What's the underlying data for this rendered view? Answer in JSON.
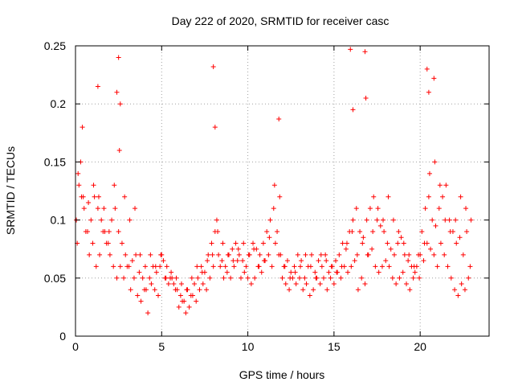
{
  "chart_data": {
    "type": "scatter",
    "title": "Day 222 of 2020, SRMTID for receiver casc",
    "xlabel": "GPS time / hours",
    "ylabel": "SRMTID / TECUs",
    "xlim": [
      0,
      24
    ],
    "ylim": [
      0,
      0.25
    ],
    "xticks": [
      0,
      5,
      10,
      15,
      20
    ],
    "yticks": [
      0,
      0.05,
      0.1,
      0.15,
      0.2,
      0.25
    ],
    "xtick_labels": [
      "0",
      "5",
      "10",
      "15",
      "20"
    ],
    "ytick_labels": [
      "0",
      "0.05",
      "0.1",
      "0.15",
      "0.2",
      "0.25"
    ],
    "grid": true,
    "marker": "+",
    "color": "#ff0000",
    "series": [
      {
        "name": "SRMTID",
        "x": [
          0.05,
          0.2,
          0.35,
          0.5,
          0.7,
          0.9,
          1.1,
          1.3,
          1.5,
          1.7,
          1.9,
          2.1,
          2.3,
          2.5,
          2.7,
          2.9,
          3.1,
          3.3,
          3.5,
          3.7,
          3.9,
          4.1,
          4.3,
          4.5,
          4.7,
          4.9,
          5.1,
          5.3,
          5.5,
          5.7,
          5.9,
          6.1,
          6.3,
          6.5,
          6.7,
          6.9,
          7.1,
          7.3,
          7.5,
          7.7,
          7.9,
          8.1,
          8.3,
          8.5,
          8.7,
          8.9,
          9.1,
          9.3,
          9.5,
          9.7,
          9.9,
          10.1,
          10.3,
          10.5,
          10.7,
          10.9,
          11.1,
          11.3,
          11.5,
          11.7,
          11.9,
          12.1,
          12.3,
          12.5,
          12.7,
          12.9,
          13.1,
          13.3,
          13.5,
          13.7,
          13.9,
          14.1,
          14.3,
          14.5,
          14.7,
          14.9,
          15.1,
          15.3,
          15.5,
          15.7,
          15.9,
          16.1,
          16.3,
          16.5,
          16.7,
          16.9,
          17.1,
          17.3,
          17.5,
          17.7,
          17.9,
          18.1,
          18.3,
          18.5,
          18.7,
          18.9,
          19.1,
          19.3,
          19.5,
          19.7,
          19.9,
          20.1,
          20.3,
          20.5,
          20.7,
          20.9,
          21.1,
          21.3,
          21.5,
          21.7,
          21.9,
          22.1,
          22.3,
          22.5,
          22.7,
          22.9,
          0.1,
          0.3,
          0.6,
          0.8,
          1.0,
          1.2,
          1.4,
          1.6,
          1.8,
          2.0,
          2.2,
          2.4,
          2.6,
          2.8,
          3.0,
          3.2,
          3.4,
          3.6,
          3.8,
          4.0,
          4.2,
          4.4,
          4.6,
          4.8,
          5.0,
          5.2,
          5.4,
          5.6,
          5.8,
          6.0,
          6.2,
          6.4,
          6.6,
          6.8,
          7.0,
          7.2,
          7.4,
          7.6,
          7.8,
          8.0,
          8.2,
          8.4,
          8.6,
          8.8,
          9.0,
          9.2,
          9.4,
          9.6,
          9.8,
          10.0,
          10.2,
          10.4,
          10.6,
          10.8,
          11.0,
          11.2,
          11.4,
          11.6,
          11.8,
          12.0,
          12.2,
          12.4,
          12.6,
          12.8,
          13.0,
          13.2,
          13.4,
          13.6,
          13.8,
          14.0,
          14.2,
          14.4,
          14.6,
          14.8,
          15.0,
          15.2,
          15.4,
          15.6,
          15.8,
          16.0,
          16.2,
          16.4,
          16.6,
          16.8,
          17.0,
          17.2,
          17.4,
          17.6,
          17.8,
          18.0,
          18.2,
          18.4,
          18.6,
          18.8,
          19.0,
          19.2,
          19.4,
          19.6,
          19.8,
          20.0,
          20.2,
          20.4,
          20.6,
          20.8,
          21.0,
          21.2,
          21.4,
          21.6,
          21.8,
          22.0,
          22.2,
          22.4,
          22.6,
          22.8,
          0.4,
          1.3,
          2.5,
          2.6,
          8.0,
          8.1,
          11.8,
          15.95,
          16.8,
          20.4,
          20.5,
          20.8,
          2.4,
          16.1,
          16.85,
          0.15,
          0.45,
          0.75,
          1.05,
          1.35,
          1.65,
          1.95,
          2.25,
          2.55,
          2.85,
          3.15,
          3.45,
          3.75,
          4.05,
          4.35,
          4.65,
          4.95,
          5.25,
          5.55,
          5.85,
          6.15,
          6.45,
          6.75,
          7.05,
          7.35,
          7.65,
          7.95,
          8.25,
          8.55,
          8.85,
          9.15,
          9.45,
          9.75,
          10.05,
          10.35,
          10.65,
          10.95,
          11.25,
          11.55,
          11.85,
          12.15,
          12.45,
          12.75,
          13.05,
          13.35,
          13.65,
          13.95,
          14.25,
          14.55,
          14.85,
          15.15,
          15.45,
          15.75,
          16.05,
          16.35,
          16.65,
          16.95,
          17.25,
          17.55,
          17.85,
          18.15,
          18.45,
          18.75,
          19.05,
          19.35,
          19.65,
          19.95,
          20.25,
          20.55,
          20.85,
          21.15,
          21.45,
          21.75,
          22.05,
          22.35,
          22.65,
          22.95
        ],
        "y": [
          0.1,
          0.13,
          0.12,
          0.11,
          0.09,
          0.1,
          0.12,
          0.11,
          0.1,
          0.09,
          0.08,
          0.1,
          0.11,
          0.09,
          0.08,
          0.07,
          0.06,
          0.065,
          0.07,
          0.055,
          0.05,
          0.04,
          0.05,
          0.06,
          0.055,
          0.06,
          0.065,
          0.06,
          0.05,
          0.045,
          0.04,
          0.035,
          0.03,
          0.04,
          0.035,
          0.045,
          0.05,
          0.06,
          0.055,
          0.07,
          0.08,
          0.09,
          0.07,
          0.065,
          0.06,
          0.07,
          0.075,
          0.08,
          0.07,
          0.065,
          0.06,
          0.07,
          0.08,
          0.075,
          0.07,
          0.08,
          0.09,
          0.1,
          0.11,
          0.09,
          0.07,
          0.06,
          0.065,
          0.055,
          0.06,
          0.07,
          0.065,
          0.05,
          0.06,
          0.07,
          0.055,
          0.065,
          0.06,
          0.07,
          0.055,
          0.06,
          0.065,
          0.07,
          0.08,
          0.075,
          0.09,
          0.1,
          0.11,
          0.09,
          0.085,
          0.1,
          0.11,
          0.12,
          0.1,
          0.095,
          0.09,
          0.08,
          0.075,
          0.07,
          0.08,
          0.085,
          0.07,
          0.065,
          0.06,
          0.055,
          0.07,
          0.09,
          0.11,
          0.12,
          0.1,
          0.095,
          0.11,
          0.12,
          0.13,
          0.1,
          0.09,
          0.08,
          0.085,
          0.07,
          0.09,
          0.06,
          0.08,
          0.15,
          0.09,
          0.07,
          0.08,
          0.06,
          0.07,
          0.09,
          0.08,
          0.07,
          0.06,
          0.05,
          0.06,
          0.05,
          0.06,
          0.04,
          0.05,
          0.035,
          0.03,
          0.04,
          0.02,
          0.045,
          0.04,
          0.035,
          0.07,
          0.05,
          0.045,
          0.05,
          0.04,
          0.025,
          0.03,
          0.02,
          0.025,
          0.035,
          0.03,
          0.04,
          0.045,
          0.04,
          0.05,
          0.06,
          0.1,
          0.06,
          0.05,
          0.055,
          0.05,
          0.06,
          0.065,
          0.05,
          0.055,
          0.05,
          0.045,
          0.05,
          0.06,
          0.055,
          0.065,
          0.07,
          0.06,
          0.08,
          0.07,
          0.05,
          0.045,
          0.04,
          0.05,
          0.045,
          0.05,
          0.04,
          0.045,
          0.035,
          0.04,
          0.05,
          0.045,
          0.05,
          0.04,
          0.05,
          0.045,
          0.055,
          0.05,
          0.06,
          0.055,
          0.06,
          0.065,
          0.04,
          0.05,
          0.045,
          0.07,
          0.075,
          0.06,
          0.055,
          0.06,
          0.065,
          0.06,
          0.05,
          0.045,
          0.05,
          0.055,
          0.045,
          0.04,
          0.05,
          0.06,
          0.07,
          0.065,
          0.08,
          0.075,
          0.07,
          0.06,
          0.08,
          0.07,
          0.06,
          0.05,
          0.04,
          0.035,
          0.045,
          0.04,
          0.05,
          0.18,
          0.215,
          0.24,
          0.2,
          0.232,
          0.18,
          0.187,
          0.247,
          0.245,
          0.23,
          0.21,
          0.222,
          0.21,
          0.195,
          0.205,
          0.14,
          0.12,
          0.115,
          0.13,
          0.12,
          0.11,
          0.09,
          0.13,
          0.16,
          0.12,
          0.1,
          0.11,
          0.07,
          0.06,
          0.07,
          0.06,
          0.07,
          0.05,
          0.055,
          0.05,
          0.045,
          0.04,
          0.05,
          0.06,
          0.055,
          0.065,
          0.07,
          0.09,
          0.08,
          0.07,
          0.065,
          0.075,
          0.08,
          0.07,
          0.075,
          0.06,
          0.065,
          0.085,
          0.13,
          0.12,
          0.06,
          0.05,
          0.055,
          0.06,
          0.07,
          0.06,
          0.05,
          0.07,
          0.065,
          0.06,
          0.055,
          0.06,
          0.08,
          0.09,
          0.07,
          0.08,
          0.07,
          0.09,
          0.11,
          0.1,
          0.12,
          0.1,
          0.09,
          0.08,
          0.07,
          0.06,
          0.05,
          0.08,
          0.14,
          0.15,
          0.13,
          0.1,
          0.09,
          0.1,
          0.12,
          0.11,
          0.1
        ]
      }
    ]
  }
}
